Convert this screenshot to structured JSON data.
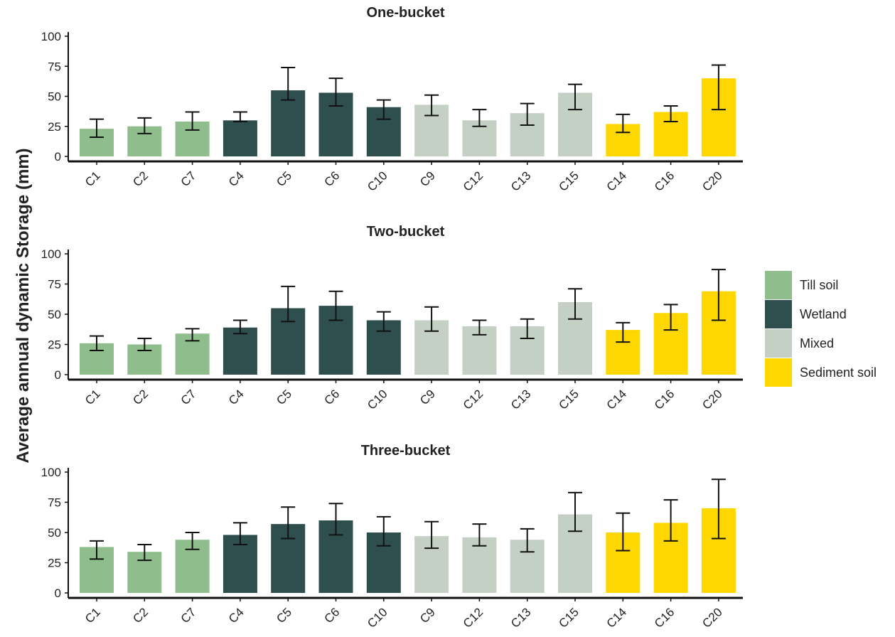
{
  "chart_data": {
    "type": "bar",
    "ylabel": "Average annual dynamic Storage (mm)",
    "ylim": [
      0,
      100
    ],
    "yticks": [
      0,
      25,
      50,
      75,
      100
    ],
    "grid": false,
    "legend_placement": "right",
    "categories": [
      "C1",
      "C2",
      "C7",
      "C4",
      "C5",
      "C6",
      "C10",
      "C9",
      "C12",
      "C13",
      "C15",
      "C14",
      "C16",
      "C20"
    ],
    "category_groups": [
      "Till soil",
      "Till soil",
      "Till soil",
      "Wetland",
      "Wetland",
      "Wetland",
      "Wetland",
      "Mixed",
      "Mixed",
      "Mixed",
      "Mixed",
      "Sediment soil",
      "Sediment soil",
      "Sediment soil"
    ],
    "legend": [
      {
        "label": "Till soil",
        "color": "#8fbe8c"
      },
      {
        "label": "Wetland",
        "color": "#2f4f4f"
      },
      {
        "label": "Mixed",
        "color": "#c4d0c4"
      },
      {
        "label": "Sediment soil",
        "color": "#ffd700"
      }
    ],
    "panels": [
      {
        "title": "One-bucket",
        "values": [
          23,
          25,
          29,
          30,
          55,
          53,
          41,
          43,
          30,
          36,
          53,
          27,
          37,
          65
        ],
        "err_low": [
          16,
          19,
          22,
          29,
          47,
          42,
          31,
          34,
          25,
          26,
          39,
          20,
          29,
          39
        ],
        "err_high": [
          31,
          32,
          37,
          37,
          74,
          65,
          47,
          51,
          39,
          44,
          60,
          35,
          42,
          76
        ]
      },
      {
        "title": "Two-bucket",
        "values": [
          26,
          25,
          34,
          39,
          55,
          57,
          45,
          45,
          40,
          40,
          60,
          37,
          51,
          69
        ],
        "err_low": [
          20,
          20,
          28,
          34,
          44,
          45,
          36,
          36,
          33,
          30,
          46,
          27,
          37,
          45
        ],
        "err_high": [
          32,
          30,
          38,
          45,
          73,
          69,
          52,
          56,
          45,
          46,
          71,
          43,
          58,
          87
        ]
      },
      {
        "title": "Three-bucket",
        "values": [
          38,
          34,
          44,
          48,
          57,
          60,
          50,
          47,
          46,
          44,
          65,
          50,
          58,
          70
        ],
        "err_low": [
          28,
          27,
          36,
          40,
          45,
          48,
          39,
          37,
          39,
          34,
          51,
          35,
          43,
          45
        ],
        "err_high": [
          43,
          40,
          50,
          58,
          71,
          74,
          63,
          59,
          57,
          53,
          83,
          66,
          77,
          94
        ]
      }
    ]
  }
}
